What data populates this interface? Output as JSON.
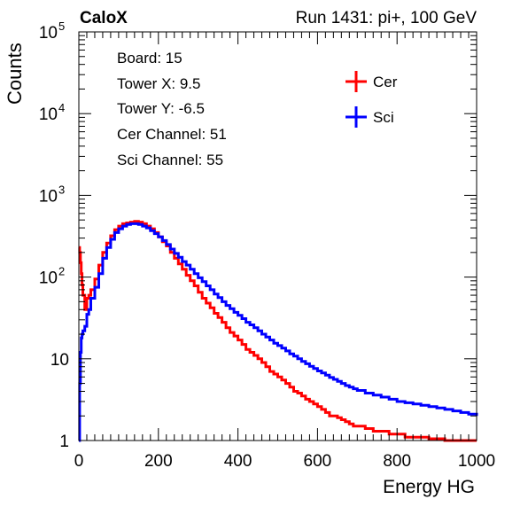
{
  "header": {
    "experiment": "CaloX",
    "run_info": "Run 1431: pi+, 100 GeV"
  },
  "info_box": {
    "lines": [
      "Board: 15",
      "Tower X: 9.5",
      "Tower Y: -6.5",
      "Cer Channel: 51",
      "Sci Channel: 55"
    ]
  },
  "chart_data": {
    "type": "line",
    "xlabel": "Energy HG",
    "ylabel": "Counts",
    "xlim": [
      0,
      1000
    ],
    "ylim": [
      1,
      100000
    ],
    "yscale": "log",
    "xticks": [
      "0",
      "200",
      "400",
      "600",
      "800",
      "1000"
    ],
    "yticks": [
      {
        "value": 1,
        "label": "1"
      },
      {
        "value": 10,
        "label": "10"
      },
      {
        "value": 100,
        "label": "10",
        "exp": "2"
      },
      {
        "value": 1000,
        "label": "10",
        "exp": "3"
      },
      {
        "value": 10000,
        "label": "10",
        "exp": "4"
      },
      {
        "value": 100000,
        "label": "10",
        "exp": "5"
      }
    ],
    "grid": false,
    "legend_position": "top-right",
    "colors": {
      "Cer": "#ff0000",
      "Sci": "#0000ff"
    },
    "series": [
      {
        "name": "Cer",
        "x": [
          0,
          2,
          4,
          6,
          8,
          10,
          15,
          20,
          25,
          30,
          40,
          50,
          60,
          70,
          80,
          90,
          100,
          110,
          120,
          130,
          140,
          150,
          160,
          170,
          180,
          190,
          200,
          210,
          220,
          230,
          240,
          250,
          260,
          270,
          280,
          290,
          300,
          310,
          320,
          330,
          340,
          350,
          360,
          370,
          380,
          390,
          400,
          410,
          420,
          430,
          440,
          450,
          460,
          470,
          480,
          490,
          500,
          510,
          520,
          530,
          540,
          550,
          560,
          570,
          580,
          590,
          600,
          610,
          620,
          630,
          640,
          650,
          660,
          670,
          680,
          690,
          700,
          720,
          740,
          760,
          780,
          800,
          820,
          840,
          860,
          880,
          900,
          920,
          940,
          960,
          980,
          1000
        ],
        "y": [
          230,
          200,
          150,
          110,
          80,
          60,
          40,
          55,
          60,
          70,
          95,
          140,
          200,
          260,
          320,
          380,
          420,
          450,
          460,
          470,
          480,
          470,
          450,
          420,
          390,
          350,
          310,
          270,
          240,
          200,
          170,
          145,
          125,
          105,
          90,
          78,
          65,
          55,
          48,
          42,
          36,
          32,
          28,
          24,
          21,
          19,
          17,
          15,
          13,
          12,
          11,
          10,
          9,
          8,
          7,
          6.5,
          6,
          5.5,
          5,
          4.5,
          4,
          3.8,
          3.5,
          3.2,
          3,
          2.8,
          2.6,
          2.4,
          2.2,
          2,
          2,
          1.9,
          1.8,
          1.7,
          1.6,
          1.5,
          1.5,
          1.4,
          1.3,
          1.3,
          1.2,
          1.2,
          1.1,
          1.1,
          1.1,
          1.05,
          1.05,
          1.0,
          1.0,
          1.0,
          1.0,
          1.0
        ]
      },
      {
        "name": "Sci",
        "x": [
          0,
          2,
          4,
          6,
          8,
          10,
          15,
          20,
          25,
          30,
          40,
          50,
          60,
          70,
          80,
          90,
          100,
          110,
          120,
          130,
          140,
          150,
          160,
          170,
          180,
          190,
          200,
          210,
          220,
          230,
          240,
          250,
          260,
          270,
          280,
          290,
          300,
          310,
          320,
          330,
          340,
          350,
          360,
          370,
          380,
          390,
          400,
          410,
          420,
          430,
          440,
          450,
          460,
          470,
          480,
          490,
          500,
          510,
          520,
          530,
          540,
          550,
          560,
          570,
          580,
          590,
          600,
          610,
          620,
          630,
          640,
          650,
          660,
          670,
          680,
          690,
          700,
          720,
          740,
          760,
          780,
          800,
          820,
          840,
          860,
          880,
          900,
          920,
          940,
          960,
          980,
          1000
        ],
        "y": [
          1,
          5,
          12,
          18,
          20,
          22,
          25,
          35,
          40,
          55,
          75,
          110,
          170,
          230,
          290,
          350,
          390,
          420,
          440,
          450,
          450,
          440,
          420,
          400,
          370,
          340,
          310,
          280,
          250,
          220,
          195,
          175,
          155,
          140,
          125,
          110,
          98,
          88,
          78,
          70,
          62,
          56,
          50,
          45,
          41,
          37,
          34,
          31,
          28,
          26,
          24,
          22,
          20,
          18.5,
          17,
          15.5,
          14.5,
          13.5,
          12.5,
          11.5,
          10.8,
          10,
          9.3,
          8.7,
          8.1,
          7.6,
          7.1,
          6.7,
          6.3,
          5.9,
          5.6,
          5.3,
          5,
          4.7,
          4.5,
          4.3,
          4.1,
          3.8,
          3.6,
          3.4,
          3.2,
          3.0,
          2.9,
          2.8,
          2.7,
          2.6,
          2.5,
          2.4,
          2.3,
          2.2,
          2.1,
          2.0
        ]
      }
    ]
  }
}
